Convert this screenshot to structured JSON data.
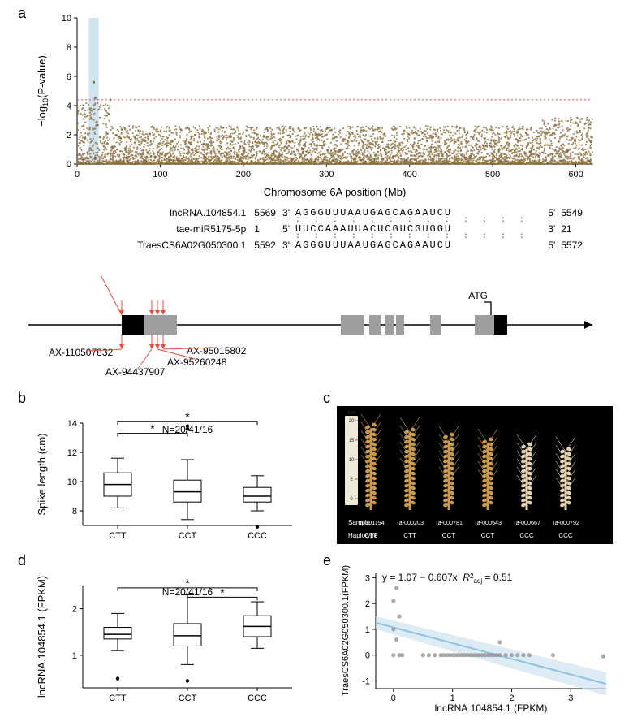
{
  "panel_labels": {
    "a": "a",
    "b": "b",
    "c": "c",
    "d": "d",
    "e": "e"
  },
  "manhattan": {
    "type": "scatter",
    "xlabel": "Chromosome 6A position (Mb)",
    "ylabel": "−log₁₀(P-value)",
    "xlim": [
      0,
      620
    ],
    "ylim": [
      0,
      10
    ],
    "xtick_step": 100,
    "ytick_step": 2,
    "point_color": "#8b6f3f",
    "threshold_y": 4.4,
    "threshold_color": "#d43a3a",
    "threshold_dash": "2,3",
    "highlight_band": {
      "x": 14,
      "width": 12,
      "color": "#cfe4f0"
    },
    "background_color": "#ffffff"
  },
  "alignment": {
    "rows": [
      {
        "name": "lncRNA.104854.1",
        "start": "5569",
        "dir5": "3'",
        "seq": "AGGGUUUAAUGAGCAGAAUCU",
        "dir3": "5'",
        "end": "5549"
      },
      {
        "name": "tae-miR5175-5p",
        "start": "1",
        "dir5": "5'",
        "seq": "UUCCAAAUUACUCGUCGUGGU",
        "dir3": "3'",
        "end": "21"
      },
      {
        "name": "TraesCS6A02G050300.1",
        "start": "5592",
        "dir5": "3'",
        "seq": "AGGGUUUAAUGAGCAGAAUCU",
        "dir3": "5'",
        "end": "5572"
      }
    ]
  },
  "gene_model": {
    "line_color": "#000000",
    "black_fill": "#000000",
    "grey_fill": "#9e9e9e",
    "exons": [
      {
        "x": 120,
        "w": 28,
        "color": "black"
      },
      {
        "x": 148,
        "w": 40,
        "color": "grey"
      },
      {
        "x": 390,
        "w": 28,
        "color": "grey"
      },
      {
        "x": 425,
        "w": 14,
        "color": "grey"
      },
      {
        "x": 445,
        "w": 10,
        "color": "grey"
      },
      {
        "x": 458,
        "w": 10,
        "color": "grey"
      },
      {
        "x": 500,
        "w": 14,
        "color": "grey"
      },
      {
        "x": 555,
        "w": 24,
        "color": "grey"
      },
      {
        "x": 579,
        "w": 16,
        "color": "black"
      }
    ],
    "atg_label": "ATG",
    "snp_annotations": [
      {
        "label": "AX-110507832",
        "x_target": 120,
        "x_label": 30,
        "y_label": 440
      },
      {
        "label": "AX-94437907",
        "x_target": 157,
        "x_label": 100,
        "y_label": 465
      },
      {
        "label": "AX-95260248",
        "x_target": 164,
        "x_label": 175,
        "y_label": 455
      },
      {
        "label": "AX-95015802",
        "x_target": 171,
        "x_label": 200,
        "y_label": 440
      }
    ]
  },
  "boxplot_b": {
    "type": "boxplot",
    "ylabel": "Spike length (cm)",
    "n_label": "N=20/41/16",
    "categories": [
      "CTT",
      "CCT",
      "CCC"
    ],
    "ylim": [
      7,
      14
    ],
    "yticks": [
      8,
      10,
      12,
      14
    ],
    "boxes": [
      {
        "q1": 9.0,
        "med": 9.8,
        "q3": 10.6,
        "wlo": 8.2,
        "whi": 11.6,
        "outliers": []
      },
      {
        "q1": 8.6,
        "med": 9.3,
        "q3": 10.1,
        "wlo": 7.4,
        "whi": 11.5,
        "outliers": [
          13.8,
          13.6
        ]
      },
      {
        "q1": 8.6,
        "med": 9.0,
        "q3": 9.6,
        "wlo": 8.0,
        "whi": 10.4,
        "outliers": [
          6.9
        ]
      }
    ],
    "sig_bars": [
      {
        "from": 0,
        "to": 1,
        "y": 13.3,
        "label": "*"
      },
      {
        "from": 0,
        "to": 2,
        "y": 14.1,
        "label": "*"
      }
    ],
    "box_border": "#000000",
    "box_fill": "#ffffff"
  },
  "panel_c": {
    "bg": "#000000",
    "ruler_color": "#f0e8d8",
    "ruler_label": "cm",
    "ruler_ticks": [
      "20",
      "15",
      "10",
      "5",
      "0"
    ],
    "row_labels": {
      "sample": "Sample",
      "haplo": "Haplotype"
    },
    "samples": [
      "Ta-001194",
      "Ta-000203",
      "Ta-000781",
      "Ta-000543",
      "Ta-000667",
      "Ta-000792"
    ],
    "haplotypes": [
      "CTT",
      "CTT",
      "CCT",
      "CCT",
      "CCC",
      "CCC"
    ],
    "wheat_fill": "#c99a4d",
    "wheat_light": "#e3d2b0",
    "spike_heights": [
      1.0,
      0.96,
      0.85,
      0.82,
      0.75,
      0.72
    ]
  },
  "boxplot_d": {
    "type": "boxplot",
    "ylabel": "lncRNA.104854.1 (FPKM)",
    "n_label": "N=20/41/16",
    "categories": [
      "CTT",
      "CCT",
      "CCC"
    ],
    "ylim": [
      0.3,
      2.5
    ],
    "yticks": [
      1,
      2
    ],
    "boxes": [
      {
        "q1": 1.35,
        "med": 1.45,
        "q3": 1.6,
        "wlo": 1.1,
        "whi": 1.9,
        "outliers": [
          0.5
        ]
      },
      {
        "q1": 1.2,
        "med": 1.42,
        "q3": 1.68,
        "wlo": 0.8,
        "whi": 2.3,
        "outliers": [
          0.45
        ]
      },
      {
        "q1": 1.4,
        "med": 1.62,
        "q3": 1.85,
        "wlo": 1.15,
        "whi": 2.15,
        "outliers": []
      }
    ],
    "sig_bars": [
      {
        "from": 1,
        "to": 2,
        "y": 2.25,
        "label": "*"
      },
      {
        "from": 0,
        "to": 2,
        "y": 2.45,
        "label": "*"
      }
    ],
    "box_border": "#000000",
    "box_fill": "#ffffff"
  },
  "scatter_e": {
    "type": "scatter",
    "xlabel": "lncRNA.104854.1 (FPKM)",
    "ylabel": "TraesCS6A02G050300.1(FPKM)",
    "equation": "y = 1.07 − 0.607x",
    "r2_label": "R²_adj = 0.51",
    "xlim": [
      -0.3,
      3.6
    ],
    "ylim": [
      -1.3,
      3.2
    ],
    "xticks": [
      0,
      1,
      2,
      3
    ],
    "yticks": [
      -1,
      0,
      1,
      2,
      3
    ],
    "point_color": "#8e8e8e",
    "line_color": "#8fc4de",
    "band_color": "#cfe4f0",
    "fit": {
      "slope": -0.607,
      "intercept": 1.07
    },
    "points": [
      [
        0.0,
        2.1
      ],
      [
        0.05,
        2.6
      ],
      [
        0.1,
        1.5
      ],
      [
        0.0,
        1.0
      ],
      [
        0.05,
        0.6
      ],
      [
        0.0,
        0.0
      ],
      [
        0.1,
        0.0
      ],
      [
        0.15,
        0.0
      ],
      [
        0.5,
        0.0
      ],
      [
        0.6,
        0.0
      ],
      [
        0.7,
        0.0
      ],
      [
        0.8,
        0.0
      ],
      [
        0.85,
        0.0
      ],
      [
        0.9,
        0.0
      ],
      [
        0.95,
        0.0
      ],
      [
        1.0,
        0.0
      ],
      [
        1.05,
        0.0
      ],
      [
        1.1,
        0.0
      ],
      [
        1.15,
        0.0
      ],
      [
        1.2,
        0.0
      ],
      [
        1.25,
        0.0
      ],
      [
        1.3,
        0.0
      ],
      [
        1.35,
        0.0
      ],
      [
        1.4,
        0.0
      ],
      [
        1.45,
        0.0
      ],
      [
        1.5,
        0.0
      ],
      [
        1.55,
        0.0
      ],
      [
        1.6,
        0.0
      ],
      [
        1.65,
        0.0
      ],
      [
        1.7,
        0.0
      ],
      [
        1.75,
        0.0
      ],
      [
        1.8,
        0.5
      ],
      [
        1.8,
        0.0
      ],
      [
        1.9,
        0.0
      ],
      [
        2.0,
        0.0
      ],
      [
        2.1,
        0.0
      ],
      [
        2.2,
        0.0
      ],
      [
        2.3,
        0.0
      ],
      [
        2.7,
        0.0
      ],
      [
        3.55,
        -0.05
      ]
    ]
  }
}
